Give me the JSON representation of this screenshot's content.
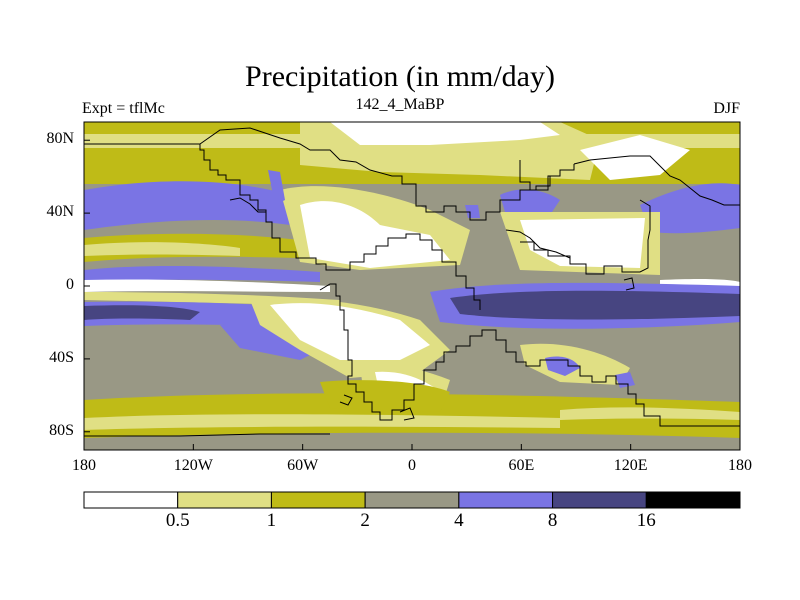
{
  "title": "Precipitation (in mm/day)",
  "left_string": "Expt = tflMc",
  "center_string": "142_4_MaBP",
  "right_string": "DJF",
  "colors": {
    "white": "#ffffff",
    "pale_yellow": "#e0df84",
    "olive": "#bfbb17",
    "gray": "#999885",
    "light_blue": "#7a74e4",
    "navy": "#474581",
    "black": "#000000",
    "coast": "#000000"
  },
  "map": {
    "lon_range": [
      -180,
      180
    ],
    "lat_range": [
      -90,
      90
    ],
    "x_ticks": [
      {
        "value": -180,
        "label": "180"
      },
      {
        "value": -120,
        "label": "120W"
      },
      {
        "value": -60,
        "label": "60W"
      },
      {
        "value": 0,
        "label": "0"
      },
      {
        "value": 60,
        "label": "60E"
      },
      {
        "value": 120,
        "label": "120E"
      },
      {
        "value": 180,
        "label": "180"
      }
    ],
    "y_ticks": [
      {
        "value": 80,
        "label": "80N"
      },
      {
        "value": 40,
        "label": "40N"
      },
      {
        "value": 0,
        "label": "0"
      },
      {
        "value": -40,
        "label": "40S"
      },
      {
        "value": -80,
        "label": "80S"
      }
    ]
  },
  "colorbar": {
    "levels": [
      "0.5",
      "1",
      "2",
      "4",
      "8",
      "16"
    ],
    "colors": [
      "white",
      "pale_yellow",
      "olive",
      "gray",
      "light_blue",
      "navy",
      "black"
    ]
  }
}
